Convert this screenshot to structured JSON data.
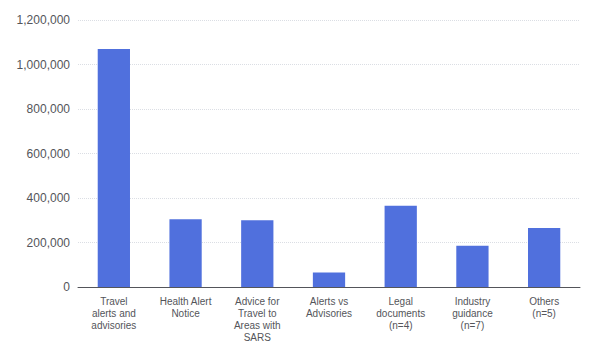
{
  "chart_data": {
    "type": "bar",
    "categories": [
      "Travel\nalerts and\nadvisories",
      "Health Alert\nNotice",
      "Advice for\nTravel to\nAreas with\nSARS",
      "Alerts vs\nAdvisories",
      "Legal\ndocuments\n(n=4)",
      "Industry\nguidance\n(n=7)",
      "Others\n(n=5)"
    ],
    "values": [
      1070000,
      305000,
      300000,
      65000,
      365000,
      185000,
      265000
    ],
    "ylim": [
      0,
      1200000
    ],
    "yticks": [
      0,
      {
        "value": 200000,
        "label": "200,000"
      },
      {
        "value": 400000,
        "label": "400,000"
      },
      {
        "value": 600000,
        "label": "600,000"
      },
      {
        "value": 800000,
        "label": "800,000"
      },
      {
        "value": 1000000,
        "label": "1,000,000"
      },
      {
        "value": 1200000,
        "label": "1,200,000"
      }
    ],
    "grid": true
  }
}
